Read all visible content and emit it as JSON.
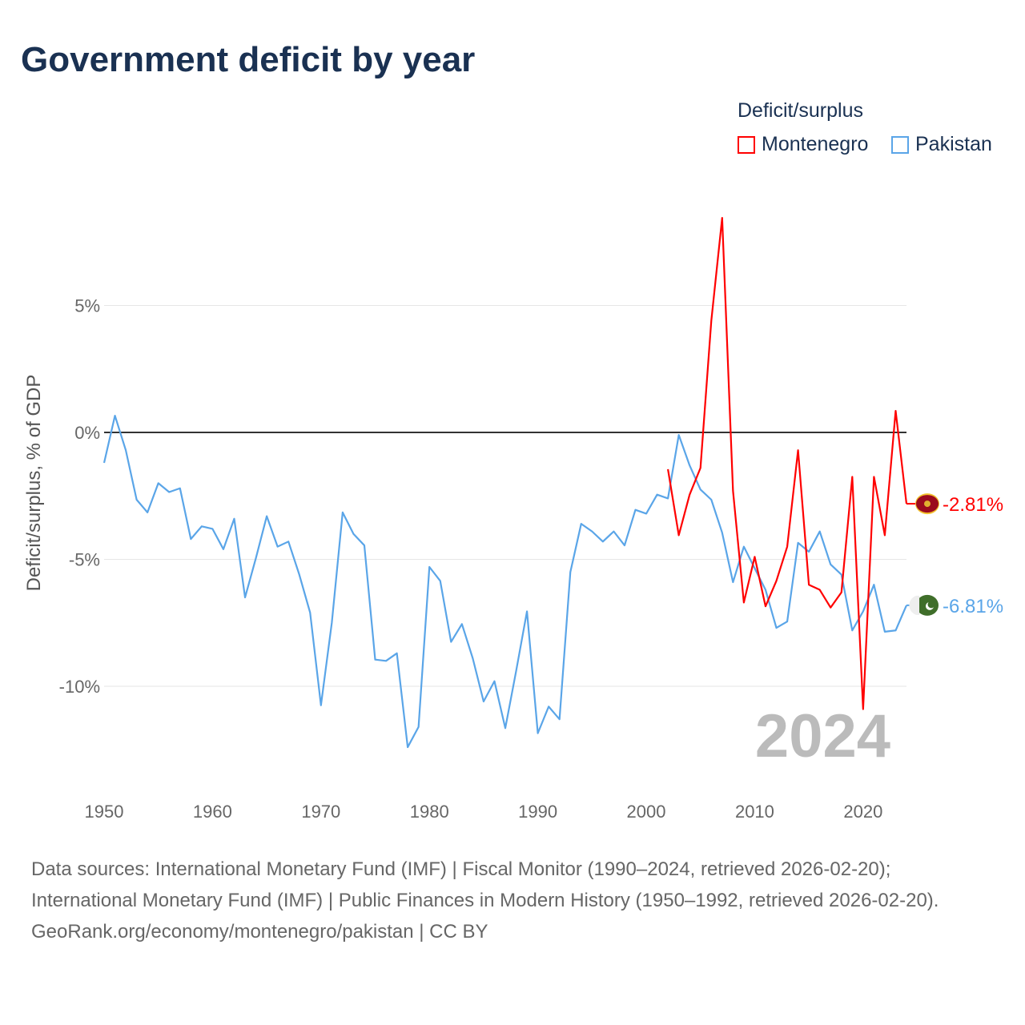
{
  "title": "Government deficit by year",
  "legend": {
    "title": "Deficit/surplus",
    "items": [
      {
        "name": "Montenegro",
        "color": "#ff0000"
      },
      {
        "name": "Pakistan",
        "color": "#5aa5e8"
      }
    ]
  },
  "footer": {
    "line1": "Data sources: International Monetary Fund (IMF) | Fiscal Monitor (1990–2024, retrieved 2026-02-20); International Monetary Fund (IMF) | Public Finances in Modern History (1950–1992, retrieved 2026-02-20).",
    "line2": "GeoRank.org/economy/montenegro/pakistan | CC BY"
  },
  "chart_data": {
    "type": "line",
    "title": "Government deficit by year",
    "xlabel": "",
    "ylabel": "Deficit/surplus, % of GDP",
    "xlim": [
      1950,
      2024
    ],
    "ylim": [
      -14,
      10
    ],
    "xticks": [
      {
        "v": 1950,
        "label": "1950"
      },
      {
        "v": 1960,
        "label": "1960"
      },
      {
        "v": 1970,
        "label": "1970"
      },
      {
        "v": 1980,
        "label": "1980"
      },
      {
        "v": 1990,
        "label": "1990"
      },
      {
        "v": 2000,
        "label": "2000"
      },
      {
        "v": 2010,
        "label": "2010"
      },
      {
        "v": 2020,
        "label": "2020"
      }
    ],
    "yticks": [
      {
        "v": 5,
        "label": "5%"
      },
      {
        "v": 0,
        "label": "0%"
      },
      {
        "v": -5,
        "label": "-5%"
      },
      {
        "v": -10,
        "label": "-10%"
      }
    ],
    "year_label": "2024",
    "series": [
      {
        "name": "Montenegro",
        "color": "#ff0000",
        "end_label": "-2.81%",
        "start": 2002,
        "values": [
          -1.45,
          -4.05,
          -2.45,
          -1.4,
          4.4,
          8.45,
          -2.3,
          -6.7,
          -4.9,
          -6.85,
          -5.85,
          -4.5,
          -0.7,
          -6.0,
          -6.2,
          -6.9,
          -6.3,
          -1.75,
          -10.9,
          -1.75,
          -4.05,
          0.85,
          -2.81
        ]
      },
      {
        "name": "Pakistan",
        "color": "#5aa5e8",
        "end_label": "-6.81%",
        "start": 1950,
        "values": [
          -1.2,
          0.66,
          -0.7,
          -2.65,
          -3.15,
          -2.0,
          -2.35,
          -2.2,
          -4.2,
          -3.7,
          -3.8,
          -4.6,
          -3.4,
          -6.5,
          -4.95,
          -3.3,
          -4.5,
          -4.3,
          -5.6,
          -7.1,
          -10.75,
          -7.5,
          -3.15,
          -4.0,
          -4.45,
          -8.95,
          -9.0,
          -8.7,
          -12.4,
          -11.6,
          -5.3,
          -5.85,
          -8.25,
          -7.55,
          -8.9,
          -10.6,
          -9.8,
          -11.65,
          -9.4,
          -7.05,
          -11.85,
          -10.8,
          -11.3,
          -5.5,
          -3.6,
          -3.9,
          -4.3,
          -3.9,
          -4.45,
          -3.05,
          -3.2,
          -2.45,
          -2.6,
          -0.1,
          -1.3,
          -2.25,
          -2.65,
          -3.95,
          -5.9,
          -4.5,
          -5.35,
          -6.2,
          -7.7,
          -7.45,
          -4.35,
          -4.7,
          -3.9,
          -5.2,
          -5.6,
          -7.8,
          -7.05,
          -6.0,
          -7.85,
          -7.8,
          -6.81
        ]
      }
    ]
  }
}
